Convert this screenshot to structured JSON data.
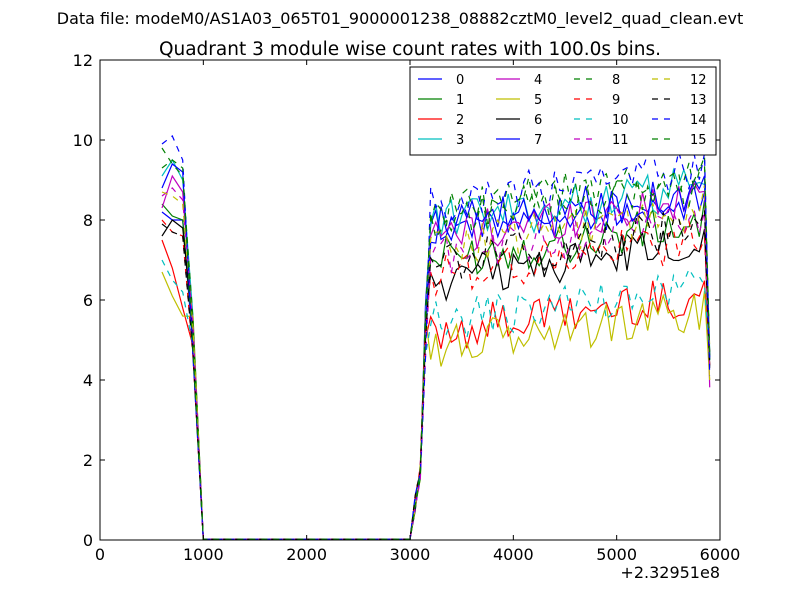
{
  "figure": {
    "suptitle": "Data file: modeM0/AS1A03_065T01_9000001238_08882cztM0_level2_quad_clean.evt"
  },
  "chart_data": {
    "type": "line",
    "title": "Quadrant 3 module wise count rates with 100.0s bins.",
    "xlabel": "",
    "ylabel": "",
    "xlim": [
      0,
      6000
    ],
    "ylim": [
      0,
      12
    ],
    "x_offset_label": "+2.32951e8",
    "x_ticks": [
      0,
      1000,
      2000,
      3000,
      4000,
      5000,
      6000
    ],
    "y_ticks": [
      0,
      2,
      4,
      6,
      8,
      10,
      12
    ],
    "grid": false,
    "legend": {
      "placement": "top-right",
      "columns": 4
    },
    "x": [
      600,
      700,
      800,
      900,
      1000,
      1100,
      1200,
      1300,
      1400,
      1500,
      1600,
      1700,
      1800,
      1900,
      2000,
      2100,
      2200,
      2300,
      2400,
      2500,
      2600,
      2700,
      2800,
      2900,
      3000,
      3050,
      3100,
      3150,
      3200,
      3250,
      3300,
      3350,
      3400,
      3450,
      3500,
      3550,
      3600,
      3650,
      3700,
      3750,
      3800,
      3850,
      3900,
      3950,
      4000,
      4050,
      4100,
      4150,
      4200,
      4250,
      4300,
      4350,
      4400,
      4450,
      4500,
      4550,
      4600,
      4650,
      4700,
      4750,
      4800,
      4850,
      4900,
      4950,
      5000,
      5050,
      5100,
      5150,
      5200,
      5250,
      5300,
      5350,
      5400,
      5450,
      5500,
      5550,
      5600,
      5650,
      5700,
      5750,
      5800,
      5850,
      5900
    ],
    "series": [
      {
        "name": "0",
        "color": "#0000ff",
        "style": "solid",
        "base": 8.3,
        "start": [
          8.2,
          8.0,
          8.0
        ]
      },
      {
        "name": "1",
        "color": "#008000",
        "style": "solid",
        "base": 7.6,
        "start": [
          8.4,
          8.1,
          8.0
        ]
      },
      {
        "name": "2",
        "color": "#ff0000",
        "style": "solid",
        "base": 5.8,
        "start": [
          7.5,
          6.8,
          5.8
        ]
      },
      {
        "name": "3",
        "color": "#00bfbf",
        "style": "solid",
        "base": 8.5,
        "start": [
          9.1,
          9.5,
          9.0
        ]
      },
      {
        "name": "4",
        "color": "#bf00bf",
        "style": "solid",
        "base": 8.2,
        "start": [
          8.3,
          9.1,
          8.7
        ]
      },
      {
        "name": "5",
        "color": "#bfbf00",
        "style": "solid",
        "base": 5.4,
        "start": [
          6.7,
          6.1,
          5.6
        ]
      },
      {
        "name": "6",
        "color": "#000000",
        "style": "solid",
        "base": 7.1,
        "start": [
          7.6,
          8.0,
          7.8
        ]
      },
      {
        "name": "7",
        "color": "#0000ff",
        "style": "solid",
        "base": 8.4,
        "start": [
          8.8,
          9.4,
          9.2
        ]
      },
      {
        "name": "8",
        "color": "#008000",
        "style": "dashed",
        "base": 8.8,
        "start": [
          9.8,
          9.4,
          9.1
        ]
      },
      {
        "name": "9",
        "color": "#ff0000",
        "style": "dashed",
        "base": 7.2,
        "start": [
          8.0,
          7.7,
          7.6
        ]
      },
      {
        "name": "10",
        "color": "#00bfbf",
        "style": "dashed",
        "base": 6.0,
        "start": [
          7.0,
          6.5,
          6.2
        ]
      },
      {
        "name": "11",
        "color": "#bf00bf",
        "style": "dashed",
        "base": 7.7,
        "start": [
          8.6,
          8.8,
          8.5
        ]
      },
      {
        "name": "12",
        "color": "#bfbf00",
        "style": "dashed",
        "base": 7.9,
        "start": [
          8.7,
          8.6,
          8.4
        ]
      },
      {
        "name": "13",
        "color": "#000000",
        "style": "dashed",
        "base": 7.5,
        "start": [
          7.9,
          7.7,
          7.6
        ]
      },
      {
        "name": "14",
        "color": "#0000ff",
        "style": "dashed",
        "base": 9.0,
        "start": [
          9.9,
          10.1,
          9.5
        ]
      },
      {
        "name": "15",
        "color": "#008000",
        "style": "dashed",
        "base": 8.6,
        "start": [
          9.3,
          9.5,
          9.3
        ]
      }
    ]
  }
}
